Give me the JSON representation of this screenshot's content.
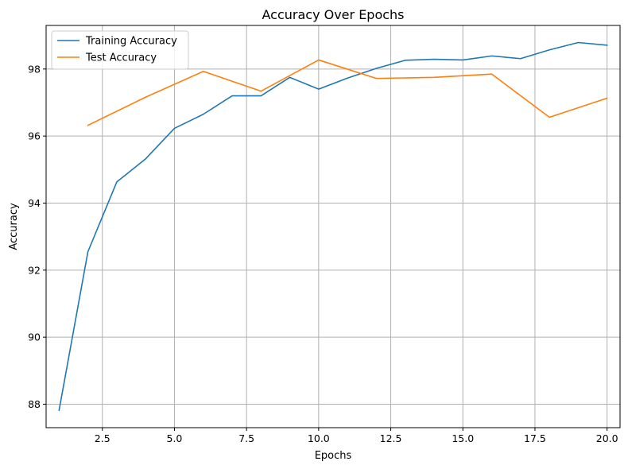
{
  "chart_data": {
    "type": "line",
    "title": "Accuracy Over Epochs",
    "xlabel": "Epochs",
    "ylabel": "Accuracy",
    "xlim": [
      0.55,
      20.45
    ],
    "ylim": [
      87.3,
      99.3
    ],
    "xticks": [
      2.5,
      5.0,
      7.5,
      10.0,
      12.5,
      15.0,
      17.5,
      20.0
    ],
    "xtick_labels": [
      "2.5",
      "5.0",
      "7.5",
      "10.0",
      "12.5",
      "15.0",
      "17.5",
      "20.0"
    ],
    "yticks": [
      88,
      90,
      92,
      94,
      96,
      98
    ],
    "ytick_labels": [
      "88",
      "90",
      "92",
      "94",
      "96",
      "98"
    ],
    "grid": true,
    "legend_position": "top-left",
    "series": [
      {
        "name": "Training Accuracy",
        "color": "#1f77b4",
        "x": [
          1,
          2,
          3,
          4,
          5,
          6,
          7,
          8,
          9,
          10,
          11,
          12,
          13,
          14,
          15,
          16,
          17,
          18,
          19,
          20
        ],
        "y": [
          87.82,
          92.55,
          94.63,
          95.32,
          96.23,
          96.65,
          97.2,
          97.2,
          97.75,
          97.4,
          97.73,
          98.02,
          98.26,
          98.29,
          98.27,
          98.39,
          98.31,
          98.57,
          98.79,
          98.71
        ]
      },
      {
        "name": "Test Accuracy",
        "color": "#ff7f0e",
        "x": [
          2,
          4,
          6,
          8,
          10,
          12,
          14,
          16,
          18,
          20
        ],
        "y": [
          96.32,
          97.16,
          97.93,
          97.34,
          98.27,
          97.72,
          97.75,
          97.85,
          96.56,
          97.13
        ]
      }
    ]
  }
}
